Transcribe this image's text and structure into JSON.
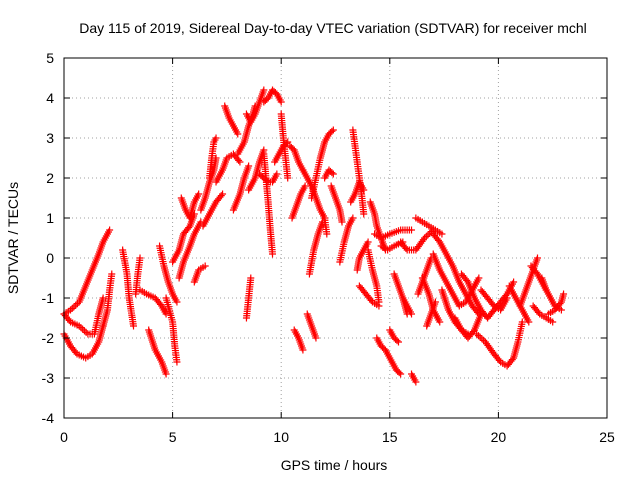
{
  "chart_data": {
    "type": "scatter",
    "title": "Day 115 of 2019, Sidereal Day-to-day VTEC variation (SDTVAR) for receiver mchl",
    "xlabel": "GPS time / hours",
    "ylabel": "SDTVAR / TECUs",
    "xlim": [
      0,
      25
    ],
    "ylim": [
      -4,
      5
    ],
    "xticks": [
      0,
      5,
      10,
      15,
      20,
      25
    ],
    "yticks": [
      -4,
      -3,
      -2,
      -1,
      0,
      1,
      2,
      3,
      4,
      5
    ],
    "grid": true,
    "marker": "+",
    "series_color": "#ff0000",
    "traces": [
      [
        [
          0.0,
          -1.4
        ],
        [
          0.3,
          -1.3
        ],
        [
          0.7,
          -1.1
        ],
        [
          1.0,
          -0.7
        ],
        [
          1.3,
          -0.3
        ],
        [
          1.6,
          0.1
        ],
        [
          1.8,
          0.4
        ],
        [
          2.1,
          0.7
        ]
      ],
      [
        [
          0.0,
          -1.9
        ],
        [
          0.3,
          -2.2
        ],
        [
          0.6,
          -2.4
        ],
        [
          1.0,
          -2.5
        ],
        [
          1.3,
          -2.4
        ],
        [
          1.6,
          -2.1
        ],
        [
          1.8,
          -1.7
        ]
      ],
      [
        [
          0.0,
          -1.4
        ],
        [
          0.3,
          -1.6
        ],
        [
          0.7,
          -1.7
        ],
        [
          1.1,
          -1.9
        ],
        [
          1.4,
          -1.9
        ],
        [
          1.6,
          -1.4
        ],
        [
          1.8,
          -1.0
        ]
      ],
      [
        [
          1.8,
          -1.7
        ],
        [
          2.0,
          -1.3
        ],
        [
          2.1,
          -0.8
        ],
        [
          2.2,
          -0.4
        ]
      ],
      [
        [
          2.7,
          0.2
        ],
        [
          2.9,
          -0.4
        ],
        [
          3.0,
          -1.0
        ],
        [
          3.2,
          -1.7
        ]
      ],
      [
        [
          3.3,
          -0.9
        ],
        [
          3.4,
          -0.4
        ],
        [
          3.5,
          0.0
        ]
      ],
      [
        [
          3.5,
          -0.8
        ],
        [
          3.8,
          -0.9
        ],
        [
          4.2,
          -1.0
        ],
        [
          4.5,
          -1.2
        ],
        [
          4.7,
          -1.4
        ]
      ],
      [
        [
          3.9,
          -1.8
        ],
        [
          4.2,
          -2.3
        ],
        [
          4.5,
          -2.6
        ],
        [
          4.7,
          -2.9
        ]
      ],
      [
        [
          4.4,
          0.3
        ],
        [
          4.6,
          -0.2
        ],
        [
          4.8,
          -0.6
        ],
        [
          5.0,
          -0.9
        ],
        [
          5.2,
          -1.1
        ]
      ],
      [
        [
          4.7,
          -1.0
        ],
        [
          5.0,
          -1.6
        ],
        [
          5.1,
          -2.2
        ],
        [
          5.2,
          -2.6
        ]
      ],
      [
        [
          5.0,
          -0.1
        ],
        [
          5.3,
          0.2
        ],
        [
          5.5,
          0.6
        ],
        [
          5.8,
          0.8
        ],
        [
          6.0,
          1.1
        ]
      ],
      [
        [
          5.3,
          -0.5
        ],
        [
          5.5,
          -0.1
        ],
        [
          5.8,
          0.3
        ],
        [
          6.0,
          0.6
        ],
        [
          6.3,
          0.9
        ]
      ],
      [
        [
          5.4,
          1.5
        ],
        [
          5.6,
          1.2
        ],
        [
          5.8,
          1.0
        ],
        [
          6.0,
          1.4
        ],
        [
          6.2,
          1.6
        ]
      ],
      [
        [
          6.0,
          -0.6
        ],
        [
          6.2,
          -0.3
        ],
        [
          6.5,
          -0.2
        ]
      ],
      [
        [
          6.3,
          1.2
        ],
        [
          6.5,
          1.5
        ],
        [
          6.7,
          1.9
        ],
        [
          6.9,
          2.2
        ],
        [
          7.0,
          2.5
        ]
      ],
      [
        [
          6.4,
          0.8
        ],
        [
          6.7,
          1.1
        ],
        [
          7.0,
          1.4
        ],
        [
          7.3,
          1.6
        ]
      ],
      [
        [
          6.7,
          2.0
        ],
        [
          6.8,
          2.5
        ],
        [
          6.9,
          2.9
        ],
        [
          7.0,
          3.0
        ]
      ],
      [
        [
          7.0,
          1.9
        ],
        [
          7.3,
          2.2
        ],
        [
          7.5,
          2.5
        ],
        [
          7.8,
          2.6
        ],
        [
          8.1,
          2.4
        ]
      ],
      [
        [
          7.4,
          3.8
        ],
        [
          7.6,
          3.5
        ],
        [
          7.8,
          3.3
        ],
        [
          8.0,
          3.1
        ]
      ],
      [
        [
          7.8,
          1.2
        ],
        [
          8.1,
          1.6
        ],
        [
          8.3,
          2.0
        ],
        [
          8.5,
          2.3
        ]
      ],
      [
        [
          8.0,
          2.6
        ],
        [
          8.3,
          2.9
        ],
        [
          8.5,
          3.3
        ],
        [
          8.7,
          3.6
        ],
        [
          8.8,
          3.8
        ]
      ],
      [
        [
          8.4,
          3.6
        ],
        [
          8.6,
          3.4
        ],
        [
          8.8,
          3.6
        ],
        [
          9.0,
          3.9
        ],
        [
          9.2,
          4.2
        ]
      ],
      [
        [
          8.5,
          1.7
        ],
        [
          8.8,
          2.0
        ],
        [
          9.0,
          2.4
        ],
        [
          9.2,
          2.7
        ]
      ],
      [
        [
          9.0,
          2.1
        ],
        [
          9.2,
          2.0
        ],
        [
          9.4,
          1.9
        ],
        [
          9.6,
          1.9
        ],
        [
          9.8,
          2.1
        ]
      ],
      [
        [
          9.2,
          3.9
        ],
        [
          9.4,
          4.0
        ],
        [
          9.6,
          4.2
        ],
        [
          9.8,
          4.1
        ],
        [
          10.0,
          3.9
        ]
      ],
      [
        [
          9.2,
          2.6
        ],
        [
          9.3,
          2.0
        ],
        [
          9.4,
          1.4
        ],
        [
          9.5,
          0.7
        ],
        [
          9.6,
          0.1
        ]
      ],
      [
        [
          9.7,
          2.4
        ],
        [
          9.9,
          2.6
        ],
        [
          10.1,
          2.8
        ],
        [
          10.3,
          2.9
        ]
      ],
      [
        [
          10.0,
          3.6
        ],
        [
          10.1,
          3.0
        ],
        [
          10.2,
          2.5
        ],
        [
          10.3,
          2.0
        ]
      ],
      [
        [
          8.4,
          -1.5
        ],
        [
          8.5,
          -1.0
        ],
        [
          8.6,
          -0.5
        ]
      ],
      [
        [
          10.4,
          2.8
        ],
        [
          10.6,
          2.7
        ],
        [
          10.8,
          2.4
        ],
        [
          11.0,
          2.2
        ]
      ],
      [
        [
          10.5,
          1.0
        ],
        [
          10.7,
          1.3
        ],
        [
          10.9,
          1.6
        ],
        [
          11.1,
          1.8
        ]
      ],
      [
        [
          10.6,
          -1.8
        ],
        [
          10.8,
          -2.0
        ],
        [
          11.0,
          -2.3
        ]
      ],
      [
        [
          11.0,
          2.2
        ],
        [
          11.2,
          2.0
        ],
        [
          11.4,
          1.8
        ],
        [
          11.6,
          1.5
        ],
        [
          11.8,
          1.2
        ],
        [
          12.0,
          1.0
        ],
        [
          12.1,
          0.6
        ]
      ],
      [
        [
          11.2,
          -1.4
        ],
        [
          11.4,
          -1.7
        ],
        [
          11.6,
          -2.0
        ]
      ],
      [
        [
          11.3,
          -0.4
        ],
        [
          11.5,
          0.2
        ],
        [
          11.7,
          0.6
        ],
        [
          11.9,
          0.9
        ]
      ],
      [
        [
          11.4,
          1.5
        ],
        [
          11.6,
          2.0
        ],
        [
          11.8,
          2.5
        ],
        [
          12.0,
          2.9
        ],
        [
          12.2,
          3.1
        ],
        [
          12.4,
          3.2
        ]
      ],
      [
        [
          12.0,
          2.0
        ],
        [
          12.2,
          2.2
        ],
        [
          12.4,
          2.1
        ]
      ],
      [
        [
          12.3,
          1.8
        ],
        [
          12.5,
          1.5
        ],
        [
          12.7,
          1.2
        ],
        [
          12.8,
          0.9
        ]
      ],
      [
        [
          12.7,
          -0.1
        ],
        [
          12.9,
          0.4
        ],
        [
          13.1,
          0.8
        ],
        [
          13.3,
          1.0
        ]
      ],
      [
        [
          13.2,
          1.4
        ],
        [
          13.4,
          1.6
        ],
        [
          13.6,
          1.9
        ],
        [
          13.8,
          1.7
        ]
      ],
      [
        [
          13.3,
          3.2
        ],
        [
          13.4,
          2.8
        ],
        [
          13.5,
          2.4
        ],
        [
          13.6,
          2.0
        ],
        [
          13.7,
          1.6
        ],
        [
          13.8,
          1.1
        ]
      ],
      [
        [
          13.5,
          -0.3
        ],
        [
          13.6,
          0.0
        ],
        [
          13.8,
          0.2
        ],
        [
          14.0,
          0.4
        ]
      ],
      [
        [
          13.6,
          -0.7
        ],
        [
          13.9,
          -0.9
        ],
        [
          14.2,
          -1.1
        ],
        [
          14.5,
          -1.2
        ]
      ],
      [
        [
          14.0,
          0.2
        ],
        [
          14.2,
          -0.3
        ],
        [
          14.4,
          -0.7
        ],
        [
          14.5,
          -1.1
        ]
      ],
      [
        [
          14.1,
          1.4
        ],
        [
          14.3,
          1.1
        ],
        [
          14.4,
          0.8
        ],
        [
          14.6,
          0.5
        ],
        [
          14.8,
          0.2
        ]
      ],
      [
        [
          14.3,
          0.6
        ],
        [
          14.6,
          0.5
        ],
        [
          15.0,
          0.6
        ],
        [
          15.5,
          0.7
        ],
        [
          16.0,
          0.7
        ]
      ],
      [
        [
          14.4,
          -2.0
        ],
        [
          14.6,
          -2.2
        ],
        [
          14.8,
          -2.3
        ],
        [
          15.0,
          -2.5
        ],
        [
          15.3,
          -2.8
        ],
        [
          15.5,
          -2.9
        ]
      ],
      [
        [
          14.6,
          0.3
        ],
        [
          14.9,
          0.2
        ],
        [
          15.2,
          0.3
        ],
        [
          15.6,
          0.4
        ]
      ],
      [
        [
          15.0,
          -1.8
        ],
        [
          15.2,
          -2.0
        ],
        [
          15.4,
          -2.1
        ]
      ],
      [
        [
          15.2,
          -0.4
        ],
        [
          15.4,
          -0.7
        ],
        [
          15.6,
          -1.0
        ],
        [
          15.9,
          -1.3
        ],
        [
          16.0,
          -1.4
        ]
      ],
      [
        [
          15.5,
          0.4
        ],
        [
          15.8,
          0.2
        ],
        [
          16.2,
          0.2
        ],
        [
          16.6,
          0.5
        ],
        [
          17.0,
          0.7
        ]
      ],
      [
        [
          15.6,
          -1.0
        ],
        [
          15.7,
          -1.2
        ],
        [
          15.8,
          -1.4
        ]
      ],
      [
        [
          16.0,
          -2.9
        ],
        [
          16.1,
          -3.0
        ],
        [
          16.2,
          -3.1
        ]
      ],
      [
        [
          16.2,
          1.0
        ],
        [
          16.5,
          0.9
        ],
        [
          16.8,
          0.8
        ],
        [
          17.1,
          0.7
        ],
        [
          17.4,
          0.6
        ]
      ],
      [
        [
          16.3,
          -0.9
        ],
        [
          16.5,
          -0.6
        ],
        [
          16.7,
          -0.3
        ],
        [
          16.9,
          0.0
        ]
      ],
      [
        [
          16.5,
          -0.5
        ],
        [
          16.8,
          -0.9
        ],
        [
          17.0,
          -1.3
        ],
        [
          17.3,
          -1.6
        ]
      ],
      [
        [
          16.7,
          -1.7
        ],
        [
          16.9,
          -1.4
        ],
        [
          17.1,
          -1.1
        ]
      ],
      [
        [
          17.0,
          0.1
        ],
        [
          17.3,
          -0.3
        ],
        [
          17.6,
          -0.6
        ],
        [
          17.9,
          -0.9
        ],
        [
          18.2,
          -1.2
        ],
        [
          18.5,
          -1.1
        ],
        [
          18.8,
          -0.8
        ],
        [
          19.1,
          -0.5
        ]
      ],
      [
        [
          17.0,
          0.6
        ],
        [
          17.3,
          0.4
        ],
        [
          17.6,
          0.1
        ],
        [
          17.9,
          -0.2
        ],
        [
          18.2,
          -0.6
        ],
        [
          18.5,
          -0.9
        ],
        [
          18.8,
          -1.2
        ],
        [
          19.1,
          -1.4
        ]
      ],
      [
        [
          17.4,
          -0.8
        ],
        [
          17.7,
          -1.3
        ],
        [
          18.0,
          -1.6
        ],
        [
          18.3,
          -1.8
        ],
        [
          18.6,
          -1.9
        ]
      ],
      [
        [
          18.0,
          -1.5
        ],
        [
          18.3,
          -1.8
        ],
        [
          18.6,
          -2.0
        ],
        [
          18.9,
          -1.8
        ],
        [
          19.2,
          -1.4
        ]
      ],
      [
        [
          18.3,
          -0.4
        ],
        [
          18.6,
          -0.6
        ],
        [
          18.9,
          -1.0
        ],
        [
          19.2,
          -1.3
        ],
        [
          19.5,
          -1.5
        ]
      ],
      [
        [
          19.0,
          -1.9
        ],
        [
          19.4,
          -2.1
        ],
        [
          19.8,
          -2.4
        ],
        [
          20.1,
          -2.6
        ],
        [
          20.4,
          -2.7
        ],
        [
          20.7,
          -2.5
        ],
        [
          20.9,
          -2.1
        ],
        [
          21.1,
          -1.6
        ]
      ],
      [
        [
          19.2,
          -0.8
        ],
        [
          19.5,
          -1.0
        ],
        [
          19.8,
          -1.2
        ],
        [
          20.1,
          -1.3
        ],
        [
          20.4,
          -1.0
        ]
      ],
      [
        [
          19.5,
          -1.5
        ],
        [
          19.8,
          -1.3
        ],
        [
          20.1,
          -1.1
        ],
        [
          20.4,
          -0.9
        ],
        [
          20.7,
          -0.6
        ]
      ],
      [
        [
          20.5,
          -0.7
        ],
        [
          20.8,
          -1.0
        ],
        [
          21.1,
          -1.3
        ],
        [
          21.4,
          -1.6
        ]
      ],
      [
        [
          21.0,
          -1.2
        ],
        [
          21.2,
          -0.9
        ],
        [
          21.4,
          -0.6
        ],
        [
          21.6,
          -0.3
        ],
        [
          21.8,
          0.0
        ]
      ],
      [
        [
          21.5,
          -0.2
        ],
        [
          21.8,
          -0.4
        ],
        [
          22.0,
          -0.6
        ],
        [
          22.2,
          -0.8
        ]
      ],
      [
        [
          21.6,
          -1.2
        ],
        [
          21.9,
          -1.4
        ],
        [
          22.2,
          -1.5
        ],
        [
          22.5,
          -1.6
        ]
      ],
      [
        [
          22.0,
          -0.5
        ],
        [
          22.2,
          -0.8
        ],
        [
          22.4,
          -1.0
        ],
        [
          22.6,
          -1.2
        ],
        [
          22.9,
          -1.3
        ]
      ],
      [
        [
          22.3,
          -1.4
        ],
        [
          22.6,
          -1.3
        ],
        [
          22.9,
          -1.1
        ],
        [
          23.0,
          -0.9
        ]
      ]
    ]
  }
}
